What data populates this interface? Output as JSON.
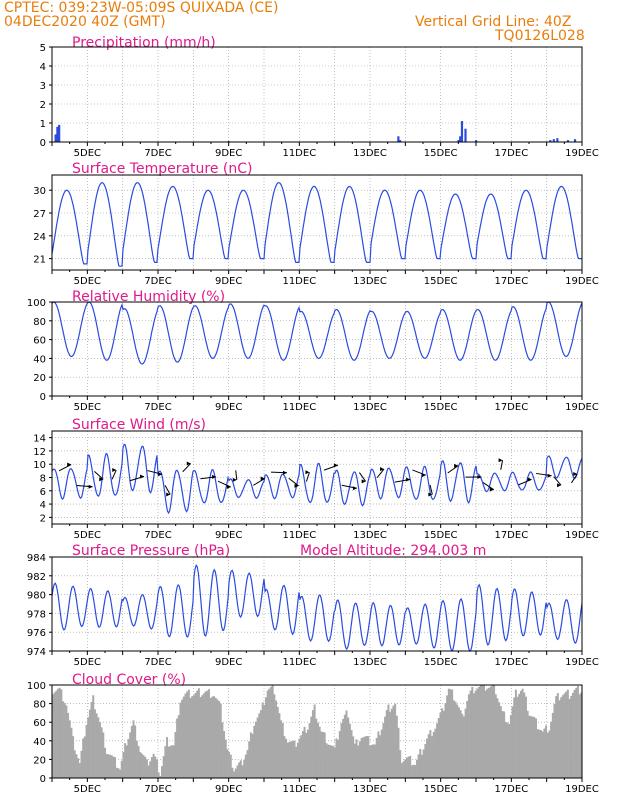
{
  "header": {
    "line1_left": "CPTEC:   039:23W-05:09S   QUIXADA (CE)",
    "line2_left": "04DEC2020 40Z (GMT)",
    "line2_right": "Vertical Grid Line: 40Z",
    "line3_right": "TQ0126L028"
  },
  "colors": {
    "header": "#e87d0c",
    "title": "#e0198c",
    "series": "#2b4be0",
    "cloud": "#a9a9a9",
    "grid": "#9a9a9a"
  },
  "chart_data": [
    {
      "type": "bar",
      "title": "Precipitation (mm/h)",
      "xlabel": "",
      "ylabel": "",
      "ylim": [
        0,
        5
      ],
      "yticks": [
        0,
        1,
        2,
        3,
        4,
        5
      ],
      "xticks": [
        "5DEC",
        "7DEC",
        "9DEC",
        "11DEC",
        "13DEC",
        "15DEC",
        "17DEC",
        "19DEC"
      ],
      "x": [
        4.1,
        4.15,
        4.2,
        9.0,
        13.8,
        13.85,
        15.5,
        15.55,
        15.6,
        15.7,
        16.0,
        18.1,
        18.2,
        18.3,
        18.6,
        18.8
      ],
      "values": [
        0.4,
        0.8,
        0.9,
        0.05,
        0.3,
        0.1,
        0.1,
        0.3,
        1.1,
        0.7,
        0.1,
        0.1,
        0.15,
        0.2,
        0.1,
        0.15
      ]
    },
    {
      "type": "line",
      "title": "Surface Temperature (nC)",
      "xlabel": "",
      "ylabel": "",
      "ylim": [
        19.5,
        32
      ],
      "yticks": [
        21,
        24,
        27,
        30
      ],
      "xticks": [
        "5DEC",
        "7DEC",
        "9DEC",
        "11DEC",
        "13DEC",
        "15DEC",
        "17DEC",
        "19DEC"
      ],
      "series": [
        {
          "max": [
            30,
            31,
            31,
            30.5,
            30,
            30,
            31,
            30.5,
            30.5,
            30,
            30,
            29.5,
            29.5,
            30,
            30.5
          ],
          "min": [
            20.3,
            20.0,
            20.5,
            21.0,
            21.0,
            21.0,
            20.5,
            20.5,
            20.5,
            21.0,
            21.0,
            21.0,
            21.0,
            21.0,
            21.0
          ]
        }
      ]
    },
    {
      "type": "line",
      "title": "Relative Humidity (%)",
      "xlabel": "",
      "ylabel": "",
      "ylim": [
        0,
        100
      ],
      "yticks": [
        0,
        20,
        40,
        60,
        80,
        100
      ],
      "xticks": [
        "5DEC",
        "7DEC",
        "9DEC",
        "11DEC",
        "13DEC",
        "15DEC",
        "17DEC",
        "19DEC"
      ],
      "series": [
        {
          "max": [
            100,
            100,
            93,
            96,
            96,
            98,
            96,
            90,
            92,
            90,
            90,
            92,
            92,
            95,
            100
          ],
          "min": [
            42,
            38,
            34,
            36,
            40,
            40,
            38,
            40,
            38,
            40,
            40,
            38,
            38,
            38,
            42
          ]
        }
      ]
    },
    {
      "type": "line",
      "title": "Surface Wind (m/s)",
      "xlabel": "",
      "ylabel": "",
      "ylim": [
        1,
        15
      ],
      "yticks": [
        2,
        4,
        6,
        8,
        10,
        12,
        14
      ],
      "xticks": [
        "5DEC",
        "7DEC",
        "9DEC",
        "11DEC",
        "13DEC",
        "15DEC",
        "17DEC",
        "19DEC"
      ],
      "series": [
        {
          "daily": [
            [
              10,
              5
            ],
            [
              12,
              5
            ],
            [
              13.5,
              6
            ],
            [
              10,
              3
            ],
            [
              9.5,
              4
            ],
            [
              8,
              5
            ],
            [
              9,
              5
            ],
            [
              10.5,
              4
            ],
            [
              9.5,
              4
            ],
            [
              10,
              5
            ],
            [
              10,
              4.5
            ],
            [
              11,
              4.5
            ],
            [
              9,
              6
            ],
            [
              9,
              6
            ],
            [
              11.5,
              8
            ]
          ]
        }
      ]
    },
    {
      "type": "line",
      "title": "Surface Pressure (hPa)",
      "annotation": "Model Altitude: 294.003 m",
      "xlabel": "",
      "ylabel": "",
      "ylim": [
        974,
        984
      ],
      "yticks": [
        974,
        976,
        978,
        980,
        982,
        984
      ],
      "xticks": [
        "5DEC",
        "7DEC",
        "9DEC",
        "11DEC",
        "13DEC",
        "15DEC",
        "17DEC",
        "19DEC"
      ],
      "series": [
        {
          "daily": [
            [
              980.8,
              976.5
            ],
            [
              981.0,
              976.0
            ],
            [
              980.0,
              976.5
            ],
            [
              980.5,
              976.0
            ],
            [
              982.5,
              976.0
            ],
            [
              983.0,
              977.0
            ],
            [
              981.0,
              976.0
            ],
            [
              979.5,
              975.5
            ],
            [
              979.0,
              974.5
            ],
            [
              979.5,
              974.0
            ],
            [
              979.0,
              974.5
            ],
            [
              979.0,
              974.5
            ],
            [
              980.5,
              975.0
            ],
            [
              981.0,
              975.0
            ],
            [
              979.5,
              975.0
            ]
          ]
        }
      ]
    },
    {
      "type": "area",
      "title": "Cloud Cover (%)",
      "xlabel": "",
      "ylabel": "",
      "ylim": [
        0,
        100
      ],
      "yticks": [
        0,
        20,
        40,
        60,
        80,
        100
      ],
      "xticks": [
        "5DEC",
        "7DEC",
        "9DEC",
        "11DEC",
        "13DEC",
        "15DEC",
        "17DEC",
        "19DEC"
      ],
      "hourly_profile": [
        95,
        95,
        80,
        40,
        15,
        60,
        85,
        60,
        30,
        20,
        10,
        40,
        60,
        30,
        15,
        25,
        5,
        40,
        35,
        85,
        90,
        90,
        92,
        92,
        90,
        75,
        30,
        10,
        15,
        30,
        60,
        70,
        95,
        95,
        60,
        40,
        35,
        45,
        55,
        75,
        50,
        40,
        30,
        60,
        70,
        35,
        45,
        40,
        35,
        55,
        75,
        80,
        20,
        20,
        15,
        30,
        45,
        55,
        70,
        95,
        85,
        65,
        90,
        98,
        98,
        98,
        95,
        70,
        60,
        90,
        95,
        70,
        60,
        50,
        55,
        85,
        90,
        90,
        95
      ]
    }
  ]
}
